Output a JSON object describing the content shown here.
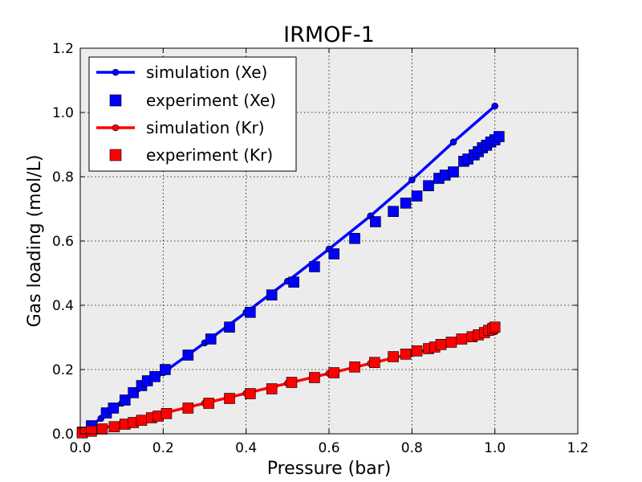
{
  "chart_data": {
    "type": "scatter",
    "title": "IRMOF-1",
    "xlabel": "Pressure (bar)",
    "ylabel": "Gas loading (mol/L)",
    "xlim": [
      0.0,
      1.2
    ],
    "ylim": [
      0.0,
      1.2
    ],
    "xticks": [
      "0.0",
      "0.2",
      "0.4",
      "0.6",
      "0.8",
      "1.0",
      "1.2"
    ],
    "yticks": [
      "0.0",
      "0.2",
      "0.4",
      "0.6",
      "0.8",
      "1.0",
      "1.2"
    ],
    "grid": true,
    "legend_position": "top-left",
    "series": [
      {
        "name": "simulation (Xe)",
        "style": "line-marker",
        "color": "#0000ff",
        "x": [
          0.0,
          0.05,
          0.1,
          0.2,
          0.3,
          0.4,
          0.5,
          0.6,
          0.7,
          0.8,
          0.9,
          1.0
        ],
        "y": [
          0.0,
          0.048,
          0.095,
          0.19,
          0.283,
          0.378,
          0.475,
          0.575,
          0.678,
          0.79,
          0.908,
          1.02
        ]
      },
      {
        "name": "experiment (Xe)",
        "style": "square",
        "color": "#0000ff",
        "x": [
          0.005,
          0.027,
          0.063,
          0.08,
          0.108,
          0.128,
          0.148,
          0.162,
          0.18,
          0.205,
          0.26,
          0.315,
          0.36,
          0.41,
          0.462,
          0.515,
          0.565,
          0.612,
          0.662,
          0.712,
          0.755,
          0.785,
          0.812,
          0.84,
          0.865,
          0.88,
          0.9,
          0.925,
          0.935,
          0.95,
          0.96,
          0.97,
          0.98,
          0.99,
          1.0,
          1.01
        ],
        "y": [
          0.005,
          0.025,
          0.065,
          0.08,
          0.105,
          0.128,
          0.15,
          0.165,
          0.178,
          0.2,
          0.245,
          0.295,
          0.332,
          0.378,
          0.432,
          0.472,
          0.52,
          0.56,
          0.608,
          0.66,
          0.692,
          0.718,
          0.74,
          0.772,
          0.795,
          0.805,
          0.815,
          0.848,
          0.855,
          0.868,
          0.878,
          0.89,
          0.898,
          0.908,
          0.915,
          0.925
        ]
      },
      {
        "name": "simulation (Kr)",
        "style": "line-marker",
        "color": "#ff0000",
        "x": [
          0.0,
          0.05,
          0.1,
          0.2,
          0.3,
          0.4,
          0.5,
          0.6,
          0.7,
          0.8,
          0.9,
          1.0
        ],
        "y": [
          0.0,
          0.016,
          0.032,
          0.064,
          0.095,
          0.126,
          0.157,
          0.188,
          0.219,
          0.25,
          0.28,
          0.318
        ]
      },
      {
        "name": "experiment (Kr)",
        "style": "square",
        "color": "#ff0000",
        "x": [
          0.005,
          0.027,
          0.053,
          0.082,
          0.108,
          0.128,
          0.148,
          0.172,
          0.188,
          0.208,
          0.26,
          0.31,
          0.36,
          0.41,
          0.462,
          0.51,
          0.565,
          0.612,
          0.662,
          0.71,
          0.755,
          0.785,
          0.812,
          0.84,
          0.855,
          0.87,
          0.895,
          0.92,
          0.945,
          0.96,
          0.975,
          0.985,
          0.995,
          1.0
        ],
        "y": [
          0.003,
          0.008,
          0.015,
          0.022,
          0.03,
          0.035,
          0.042,
          0.05,
          0.055,
          0.063,
          0.08,
          0.095,
          0.11,
          0.125,
          0.14,
          0.16,
          0.175,
          0.19,
          0.208,
          0.222,
          0.24,
          0.248,
          0.258,
          0.265,
          0.27,
          0.278,
          0.285,
          0.295,
          0.302,
          0.308,
          0.315,
          0.322,
          0.328,
          0.332
        ]
      }
    ]
  }
}
